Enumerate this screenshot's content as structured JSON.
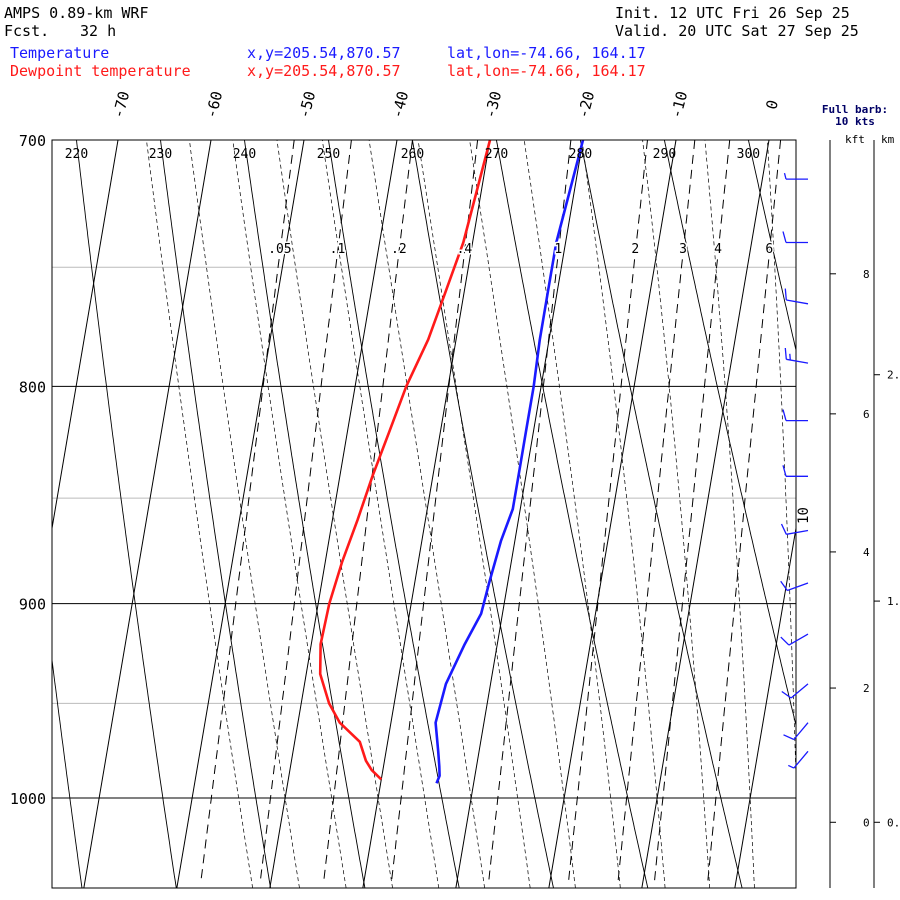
{
  "header": {
    "model": "AMPS 0.89-km WRF",
    "forecast_label": "Fcst.",
    "forecast_value": "32 h",
    "init": "Init. 12 UTC Fri 26 Sep 25",
    "valid": "Valid. 20 UTC Sat 27 Sep 25",
    "legend": [
      {
        "name": "Temperature",
        "location": "x,y=205.54,870.57",
        "latlon": "lat,lon=-74.66, 164.17",
        "color": "#1a1aff"
      },
      {
        "name": "Dewpoint temperature",
        "location": "x,y=205.54,870.57",
        "latlon": "lat,lon=-74.66, 164.17",
        "color": "#ff1a1a"
      }
    ]
  },
  "barb_legend": {
    "line1": "Full barb:",
    "line2": "10 kts"
  },
  "chart_data": {
    "type": "line",
    "pressure_range": [
      1040,
      700
    ],
    "pressure_ticks": [
      "700",
      "800",
      "900",
      "1000"
    ],
    "isotherm_labels": [
      "-70",
      "-60",
      "-50",
      "-40",
      "-30",
      "-20",
      "-10",
      "0"
    ],
    "isotherm_values": [
      -70,
      -60,
      -50,
      -40,
      -30,
      -20,
      -10,
      0
    ],
    "dry_adiabat_labels": [
      "220",
      "230",
      "240",
      "250",
      "260",
      "270",
      "280",
      "290",
      "300"
    ],
    "mixing_ratio_labels": [
      ".05",
      ".1",
      ".2",
      ".4",
      "1",
      "2",
      "3",
      "4",
      "6"
    ],
    "mixing_ratio_values": [
      0.05,
      0.1,
      0.2,
      0.4,
      1,
      2,
      3,
      4,
      6
    ],
    "height_axis_kft_label": "kft",
    "height_axis_km_label": "km",
    "height_kft_ticks": [
      "8",
      "6",
      "4",
      "2",
      "0"
    ],
    "height_km_ticks": [
      "2.",
      "1.",
      "0."
    ],
    "series": [
      {
        "name": "Temperature",
        "color": "#1a1aff",
        "points": [
          [
            700,
            -20
          ],
          [
            720,
            -20.5
          ],
          [
            740,
            -21
          ],
          [
            760,
            -21
          ],
          [
            780,
            -21
          ],
          [
            800,
            -20.8
          ],
          [
            820,
            -20.8
          ],
          [
            840,
            -20.8
          ],
          [
            855,
            -20.8
          ],
          [
            870,
            -21.5
          ],
          [
            890,
            -22
          ],
          [
            905,
            -22.3
          ],
          [
            920,
            -23.5
          ],
          [
            940,
            -24.8
          ],
          [
            960,
            -25.2
          ],
          [
            975,
            -24.4
          ],
          [
            983,
            -24
          ],
          [
            988,
            -23.8
          ],
          [
            992,
            -24
          ]
        ]
      },
      {
        "name": "Dewpoint temperature",
        "color": "#ff1a1a",
        "points": [
          [
            700,
            -30
          ],
          [
            720,
            -30.5
          ],
          [
            740,
            -31
          ],
          [
            760,
            -32
          ],
          [
            780,
            -33
          ],
          [
            800,
            -34.5
          ],
          [
            820,
            -35.5
          ],
          [
            840,
            -36.5
          ],
          [
            860,
            -37.3
          ],
          [
            880,
            -38.2
          ],
          [
            900,
            -38.8
          ],
          [
            920,
            -39
          ],
          [
            935,
            -38.5
          ],
          [
            950,
            -37
          ],
          [
            960,
            -35.5
          ],
          [
            970,
            -33
          ],
          [
            980,
            -32
          ],
          [
            985,
            -31.2
          ],
          [
            990,
            -30
          ]
        ]
      }
    ],
    "wind_barbs": [
      {
        "p": 715,
        "spd": 5,
        "dir": 270
      },
      {
        "p": 740,
        "spd": 10,
        "dir": 270
      },
      {
        "p": 765,
        "spd": 10,
        "dir": 280
      },
      {
        "p": 790,
        "spd": 15,
        "dir": 280
      },
      {
        "p": 815,
        "spd": 10,
        "dir": 270
      },
      {
        "p": 840,
        "spd": 10,
        "dir": 270
      },
      {
        "p": 865,
        "spd": 10,
        "dir": 260
      },
      {
        "p": 890,
        "spd": 10,
        "dir": 250
      },
      {
        "p": 915,
        "spd": 10,
        "dir": 240
      },
      {
        "p": 940,
        "spd": 10,
        "dir": 230
      },
      {
        "p": 960,
        "spd": 10,
        "dir": 220
      },
      {
        "p": 975,
        "spd": 5,
        "dir": 220
      }
    ],
    "wind_annotation": "10"
  }
}
